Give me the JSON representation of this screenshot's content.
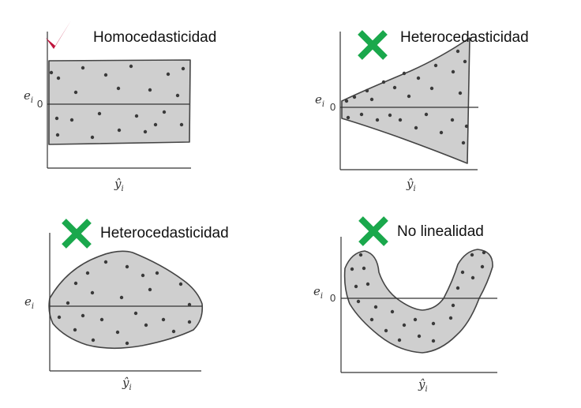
{
  "panels": [
    {
      "title": "Homocedasticidad",
      "verdict": "valid",
      "y_label": "e",
      "y_sub": "i",
      "zero": "0",
      "x_label": "ŷ",
      "x_sub": "i"
    },
    {
      "title": "Heterocedasticidad",
      "verdict": "invalid",
      "y_label": "e",
      "y_sub": "i",
      "zero": "0",
      "x_label": "ŷ",
      "x_sub": "i"
    },
    {
      "title": "Heterocedasticidad",
      "verdict": "invalid",
      "y_label": "e",
      "y_sub": "i",
      "zero": "",
      "x_label": "ŷ",
      "x_sub": "i"
    },
    {
      "title": "No linealidad",
      "verdict": "invalid",
      "y_label": "e",
      "y_sub": "i",
      "zero": "0",
      "x_label": "ŷ",
      "x_sub": "i"
    }
  ],
  "colors": {
    "check": "#c0143c",
    "cross": "#1aa84c",
    "region": "#cfcfcf"
  },
  "icons": {
    "valid": "check-mark-icon",
    "invalid": "cross-mark-icon"
  }
}
